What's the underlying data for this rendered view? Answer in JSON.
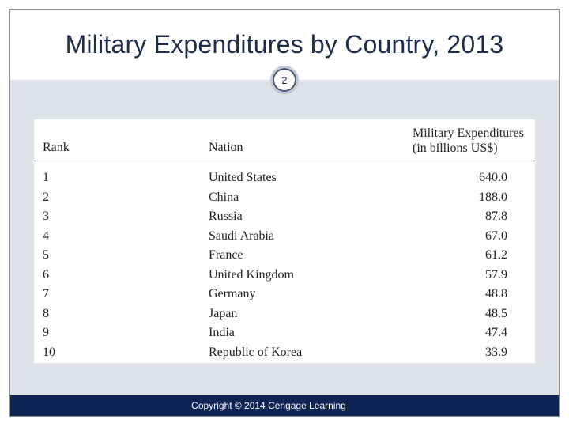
{
  "slide": {
    "title": "Military Expenditures by Country, 2013",
    "page_number": "2",
    "footer": "Copyright © 2014 Cengage Learning"
  },
  "table": {
    "headers": {
      "rank": "Rank",
      "nation": "Nation",
      "expenditure_line1": "Military Expenditures",
      "expenditure_line2": "(in billions US$)"
    },
    "rows": [
      {
        "rank": "1",
        "nation": "United States",
        "expenditure": "640.0"
      },
      {
        "rank": "2",
        "nation": "China",
        "expenditure": "188.0"
      },
      {
        "rank": "3",
        "nation": "Russia",
        "expenditure": "87.8"
      },
      {
        "rank": "4",
        "nation": "Saudi Arabia",
        "expenditure": "67.0"
      },
      {
        "rank": "5",
        "nation": "France",
        "expenditure": "61.2"
      },
      {
        "rank": "6",
        "nation": "United Kingdom",
        "expenditure": "57.9"
      },
      {
        "rank": "7",
        "nation": "Germany",
        "expenditure": "48.8"
      },
      {
        "rank": "8",
        "nation": "Japan",
        "expenditure": "48.5"
      },
      {
        "rank": "9",
        "nation": "India",
        "expenditure": "47.4"
      },
      {
        "rank": "10",
        "nation": "Republic of Korea",
        "expenditure": "33.9"
      }
    ]
  }
}
